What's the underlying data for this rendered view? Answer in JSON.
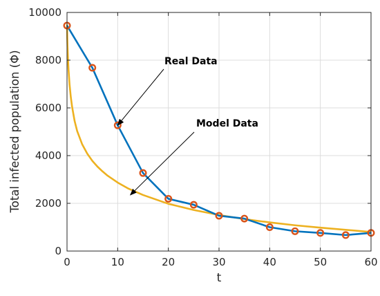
{
  "chart_data": {
    "type": "line",
    "xlabel": "t",
    "ylabel": "Total infected population (Φ)",
    "xlim": [
      0,
      60
    ],
    "ylim": [
      0,
      10000
    ],
    "x_ticks": [
      0,
      10,
      20,
      30,
      40,
      50,
      60
    ],
    "y_ticks": [
      0,
      2000,
      4000,
      6000,
      8000,
      10000
    ],
    "x_tick_labels": [
      "0",
      "10",
      "20",
      "30",
      "40",
      "50",
      "60"
    ],
    "y_tick_labels": [
      "0",
      "2000",
      "4000",
      "6000",
      "8000",
      "10000"
    ],
    "grid": true,
    "colors": {
      "real_line": "#0072BD",
      "real_marker": "#D95319",
      "model_line": "#EDB120",
      "grid": "#dcdcdc",
      "axis": "#262626"
    },
    "series": [
      {
        "key": "real",
        "x": [
          0,
          5,
          10,
          15,
          20,
          25,
          30,
          35,
          40,
          45,
          50,
          55,
          60
        ],
        "values": [
          9450,
          7680,
          5270,
          3270,
          2190,
          1940,
          1480,
          1360,
          1000,
          830,
          760,
          670,
          760
        ]
      },
      {
        "key": "model",
        "x": [
          0,
          0.05,
          0.1,
          0.2,
          0.3,
          0.5,
          0.75,
          1,
          1.5,
          2,
          3,
          4,
          5,
          6,
          7,
          8,
          10,
          12,
          15,
          20,
          25,
          30,
          35,
          40,
          45,
          50,
          55,
          60
        ],
        "values": [
          9500,
          8950,
          8580,
          8020,
          7600,
          6980,
          6450,
          6050,
          5450,
          5030,
          4470,
          4080,
          3780,
          3540,
          3340,
          3160,
          2870,
          2630,
          2350,
          1980,
          1720,
          1510,
          1340,
          1200,
          1080,
          980,
          890,
          800
        ]
      }
    ],
    "annotations": [
      {
        "text": "Real Data",
        "target": [
          10,
          5270
        ]
      },
      {
        "text": "Model Data",
        "target": [
          12.5,
          2350
        ]
      }
    ]
  }
}
